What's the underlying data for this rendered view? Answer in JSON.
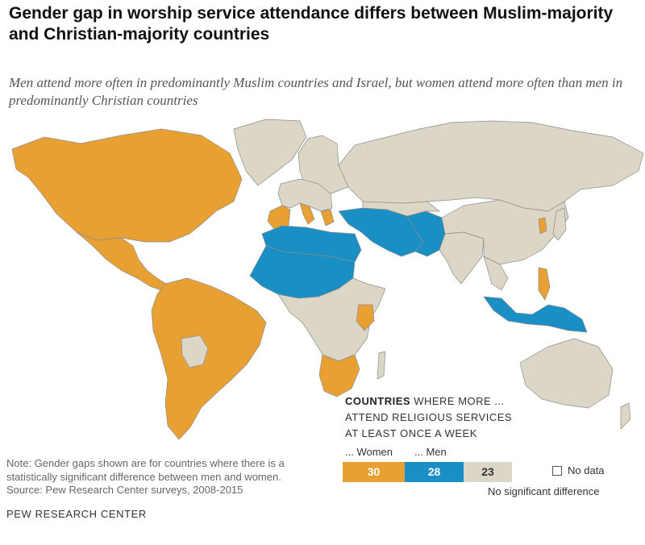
{
  "title": "Gender gap in worship service attendance differs between Muslim-majority and Christian-majority countries",
  "subtitle": "Men attend more often in predominantly Muslim countries and Israel, but women attend more often than men in predominantly Christian countries",
  "colors": {
    "women": "#e9a032",
    "men": "#1a8fc6",
    "no_difference": "#dbd6c6",
    "no_data": "#ffffff",
    "border": "#8c8c8c"
  },
  "legend": {
    "heading_bold": "COUNTRIES",
    "heading_rest": "WHERE MORE ...",
    "heading_line2": "ATTEND RELIGIOUS SERVICES",
    "heading_line3": "AT LEAST ONCE A WEEK",
    "women_label": "... Women",
    "men_label": "... Men",
    "women_count": "30",
    "men_count": "28",
    "nodiff_count": "23",
    "nodiff_label": "No significant difference",
    "nodata_label": "No data"
  },
  "note": "Note: Gender gaps shown are for countries where there is a statistically significant difference between men and women.",
  "source": "Source: Pew Research Center surveys, 2008-2015",
  "org": "PEW RESEARCH CENTER",
  "map": {
    "regions": [
      {
        "name": "North America",
        "category": "women"
      },
      {
        "name": "Mexico & Central America",
        "category": "women"
      },
      {
        "name": "South America",
        "category": "women"
      },
      {
        "name": "Bolivia",
        "category": "no_difference"
      },
      {
        "name": "Greenland",
        "category": "no_difference"
      },
      {
        "name": "Russia & Northern Eurasia",
        "category": "no_difference"
      },
      {
        "name": "China & East Asia",
        "category": "no_difference"
      },
      {
        "name": "Central Asia",
        "category": "no_difference"
      },
      {
        "name": "Southern Europe (Spain, Italy, Greece)",
        "category": "women"
      },
      {
        "name": "Northern Africa",
        "category": "men"
      },
      {
        "name": "West Africa (Sahel)",
        "category": "men"
      },
      {
        "name": "Middle East & Turkey",
        "category": "men"
      },
      {
        "name": "Pakistan & Afghanistan",
        "category": "men"
      },
      {
        "name": "Indonesia & Malaysia",
        "category": "men"
      },
      {
        "name": "Philippines",
        "category": "women"
      },
      {
        "name": "South Korea",
        "category": "women"
      },
      {
        "name": "Southern Africa",
        "category": "women"
      },
      {
        "name": "Kenya",
        "category": "women"
      },
      {
        "name": "East & Central Africa",
        "category": "no_difference"
      },
      {
        "name": "Australia",
        "category": "no_difference"
      }
    ]
  }
}
